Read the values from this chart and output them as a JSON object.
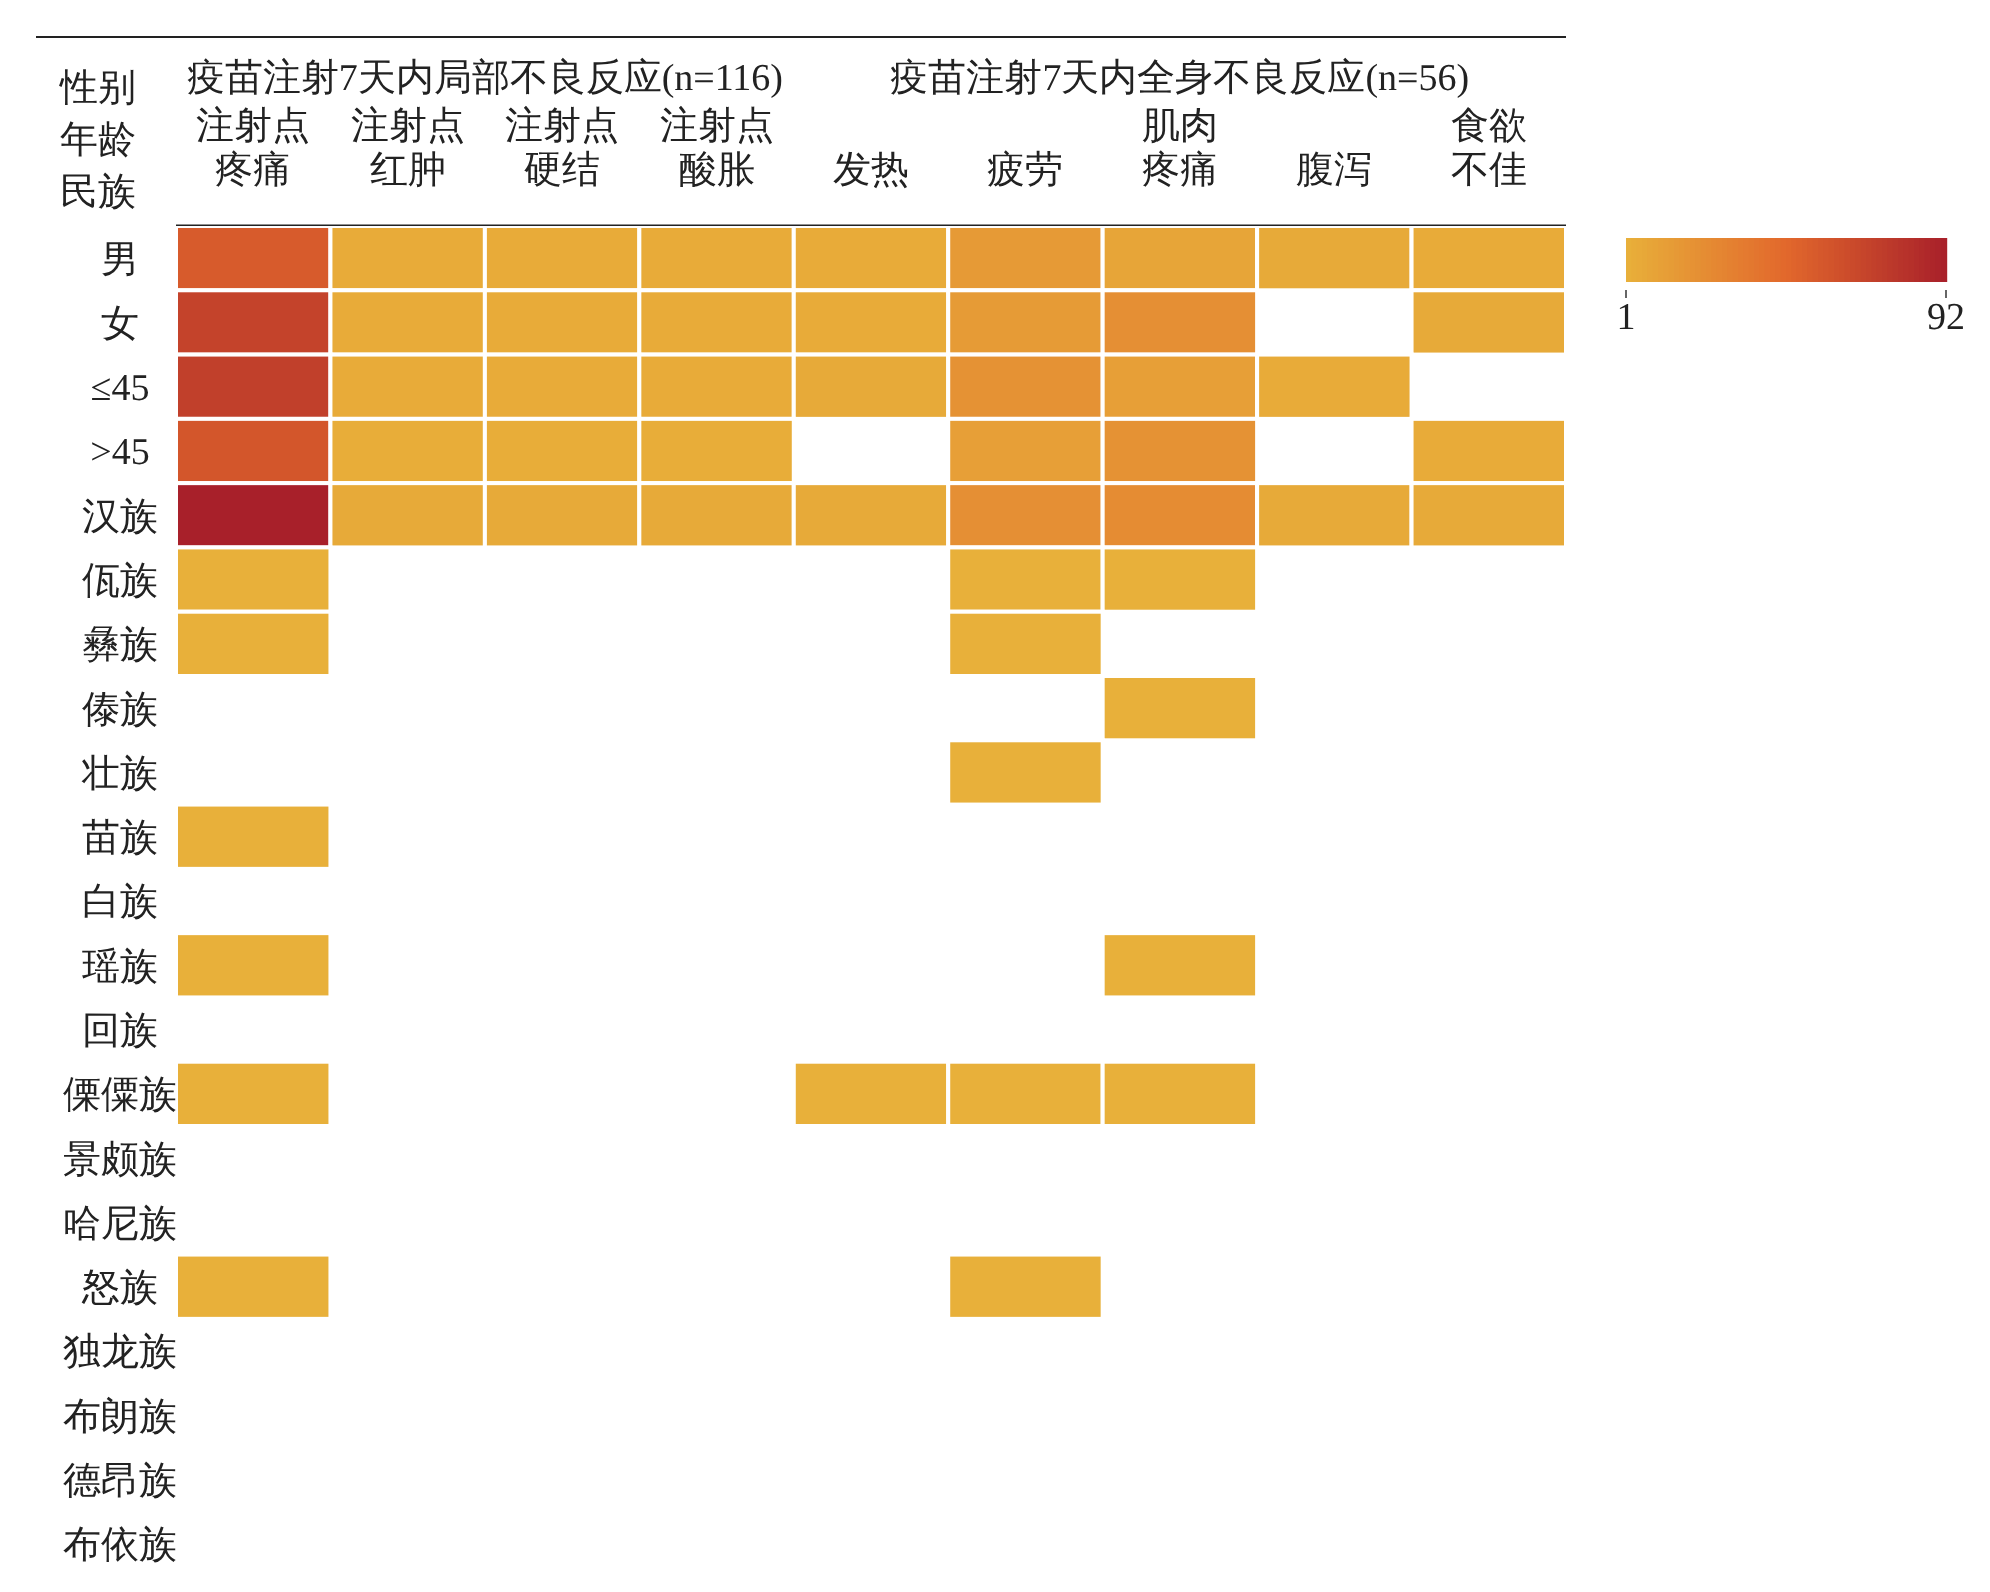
{
  "chart_data": {
    "type": "heatmap",
    "ylabel": "性别年龄民族",
    "annotations": [
      "疫苗注射7天内局部不良反应(n=116)",
      "疫苗注射7天内全身不良反应(n=56)"
    ],
    "categories": [
      "注射点疼痛",
      "注射点红肿",
      "注射点硬结",
      "注射点酸胀",
      "发热",
      "疲劳",
      "肌肉疼痛",
      "腹泻",
      "食欲不佳"
    ],
    "y_categories": [
      "男",
      "女",
      "≤45",
      ">45",
      "汉族",
      "佤族",
      "彝族",
      "傣族",
      "壮族",
      "苗族",
      "白族",
      "瑶族",
      "回族",
      "傈僳族",
      "景颇族",
      "哈尼族",
      "怒族",
      "独龙族",
      "布朗族",
      "德昂族",
      "布依族"
    ],
    "cells": [
      [
        55,
        4,
        4,
        4,
        4,
        15,
        8,
        5,
        4
      ],
      [
        70,
        4,
        4,
        4,
        4,
        14,
        22,
        null,
        5
      ],
      [
        72,
        4,
        4,
        4,
        5,
        20,
        12,
        4,
        null
      ],
      [
        58,
        3,
        3,
        3,
        null,
        12,
        20,
        null,
        4
      ],
      [
        92,
        5,
        5,
        5,
        5,
        22,
        24,
        5,
        5
      ],
      [
        1,
        null,
        null,
        null,
        null,
        1,
        1,
        null,
        null
      ],
      [
        1,
        null,
        null,
        null,
        null,
        1,
        null,
        null,
        null
      ],
      [
        null,
        null,
        null,
        null,
        null,
        null,
        1,
        null,
        null
      ],
      [
        null,
        null,
        null,
        null,
        null,
        1,
        null,
        null,
        null
      ],
      [
        1,
        null,
        null,
        null,
        null,
        null,
        null,
        null,
        null
      ],
      [
        null,
        null,
        null,
        null,
        null,
        null,
        null,
        null,
        null
      ],
      [
        1,
        null,
        null,
        null,
        null,
        null,
        1,
        null,
        null
      ],
      [
        null,
        null,
        null,
        null,
        null,
        null,
        null,
        null,
        null
      ],
      [
        1,
        null,
        null,
        null,
        1,
        1,
        1,
        null,
        null
      ],
      [
        null,
        null,
        null,
        null,
        null,
        null,
        null,
        null,
        null
      ],
      [
        null,
        null,
        null,
        null,
        null,
        null,
        null,
        null,
        null
      ],
      [
        1,
        null,
        null,
        null,
        null,
        1,
        null,
        null,
        null
      ],
      [
        null,
        null,
        null,
        null,
        null,
        null,
        null,
        null,
        null
      ],
      [
        null,
        null,
        null,
        null,
        null,
        null,
        null,
        null,
        null
      ],
      [
        null,
        null,
        null,
        null,
        null,
        null,
        null,
        null,
        null
      ],
      [
        null,
        null,
        null,
        null,
        null,
        null,
        null,
        null,
        null
      ]
    ],
    "clim": [
      1,
      92
    ],
    "cticks": [
      1,
      92
    ]
  }
}
